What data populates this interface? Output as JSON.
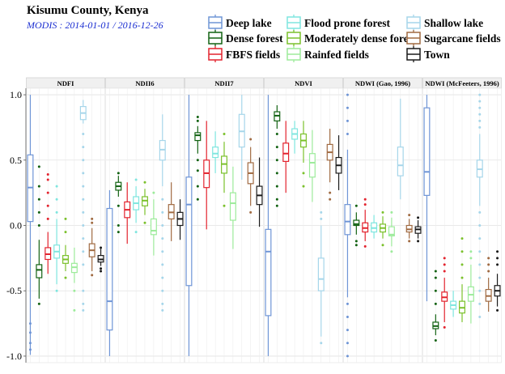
{
  "chart_data": {
    "type": "boxplot",
    "title": "Kisumu County, Kenya",
    "subtitle": "MODIS : 2014-01-01 / 2016-12-26",
    "ylim": [
      -1.05,
      1.05
    ],
    "y_ticks": [
      1.0,
      0.5,
      0.0,
      -0.5,
      -1.0
    ],
    "y_tick_labels": [
      "1.0",
      "0.5",
      "0.0",
      "-0.5",
      "-1.0"
    ],
    "grid": true,
    "legend_position": "top",
    "panels": [
      "NDFI",
      "NDII6",
      "NDII7",
      "NDVI",
      "NDWI (Gao, 1996)",
      "NDWI (McFeeters, 1996)"
    ],
    "series": [
      {
        "name": "Deep lake",
        "color": "#6f95d6",
        "stats": [
          {
            "whislo": -0.99,
            "q1": 0.03,
            "med": 0.29,
            "q3": 0.54,
            "whishi": 1.0,
            "outliers": [
              -0.75,
              -0.82,
              -0.9,
              -0.95
            ]
          },
          {
            "whislo": -1.0,
            "q1": -0.8,
            "med": -0.58,
            "q3": 0.13,
            "whishi": 0.27,
            "outliers": []
          },
          {
            "whislo": -1.0,
            "q1": -0.46,
            "med": 0.16,
            "q3": 0.37,
            "whishi": 1.0,
            "outliers": []
          },
          {
            "whislo": -1.0,
            "q1": -0.69,
            "med": -0.2,
            "q3": -0.03,
            "whishi": 1.0,
            "outliers": []
          },
          {
            "whislo": -0.55,
            "q1": -0.07,
            "med": 0.03,
            "q3": 0.16,
            "whishi": 0.58,
            "outliers": [
              1.0,
              0.9,
              0.8,
              0.7,
              -0.6,
              -0.7,
              -0.8,
              -0.9,
              -1.0
            ]
          },
          {
            "whislo": -0.58,
            "q1": 0.23,
            "med": 0.41,
            "q3": 0.9,
            "whishi": 1.0,
            "outliers": []
          }
        ]
      },
      {
        "name": "Dense forest",
        "color": "#126212",
        "stats": [
          {
            "whislo": -0.56,
            "q1": -0.4,
            "med": -0.34,
            "q3": -0.3,
            "whishi": -0.11,
            "outliers": [
              0.0,
              0.1,
              0.2,
              0.3,
              0.45,
              -0.6
            ]
          },
          {
            "whislo": 0.22,
            "q1": 0.27,
            "med": 0.3,
            "q3": 0.33,
            "whishi": 0.38,
            "outliers": [
              0.4,
              0.15,
              0.0,
              -0.05
            ]
          },
          {
            "whislo": 0.55,
            "q1": 0.65,
            "med": 0.69,
            "q3": 0.71,
            "whishi": 0.76,
            "outliers": [
              0.8,
              0.83,
              0.5,
              0.42,
              0.3,
              0.2
            ]
          },
          {
            "whislo": 0.74,
            "q1": 0.8,
            "med": 0.84,
            "q3": 0.87,
            "whishi": 0.92,
            "outliers": [
              0.7,
              0.6,
              0.5,
              0.4,
              0.3,
              0.2,
              0.15
            ]
          },
          {
            "whislo": -0.07,
            "q1": 0.0,
            "med": 0.01,
            "q3": 0.04,
            "whishi": 0.1,
            "outliers": [
              0.15,
              -0.12,
              -0.15
            ]
          },
          {
            "whislo": -0.84,
            "q1": -0.79,
            "med": -0.77,
            "q3": -0.74,
            "whishi": -0.68,
            "outliers": [
              -0.6,
              -0.5,
              -0.4,
              -0.35,
              -0.88
            ]
          }
        ]
      },
      {
        "name": "FBFS fields",
        "color": "#e3232e",
        "stats": [
          {
            "whislo": -0.37,
            "q1": -0.26,
            "med": -0.22,
            "q3": -0.17,
            "whishi": -0.05,
            "outliers": [
              0.05,
              0.15,
              0.25,
              0.35,
              0.39
            ]
          },
          {
            "whislo": -0.14,
            "q1": 0.06,
            "med": 0.12,
            "q3": 0.18,
            "whishi": 0.33,
            "outliers": []
          },
          {
            "whislo": -0.03,
            "q1": 0.29,
            "med": 0.4,
            "q3": 0.5,
            "whishi": 0.8,
            "outliers": []
          },
          {
            "whislo": 0.25,
            "q1": 0.49,
            "med": 0.55,
            "q3": 0.63,
            "whishi": 0.8,
            "outliers": []
          },
          {
            "whislo": -0.12,
            "q1": -0.05,
            "med": -0.02,
            "q3": 0.02,
            "whishi": 0.12,
            "outliers": [
              0.16,
              0.2,
              -0.16
            ]
          },
          {
            "whislo": -0.74,
            "q1": -0.58,
            "med": -0.55,
            "q3": -0.51,
            "whishi": -0.4,
            "outliers": [
              -0.35,
              -0.3,
              -0.25,
              -0.78
            ]
          }
        ]
      },
      {
        "name": "Flood prone forest",
        "color": "#7fe6df",
        "stats": [
          {
            "whislo": -0.45,
            "q1": -0.25,
            "med": -0.2,
            "q3": -0.15,
            "whishi": 0.05,
            "outliers": [
              0.1,
              0.2,
              0.3,
              -0.5
            ]
          },
          {
            "whislo": 0.02,
            "q1": 0.12,
            "med": 0.17,
            "q3": 0.22,
            "whishi": 0.3,
            "outliers": [
              0.35,
              -0.05
            ]
          },
          {
            "whislo": 0.4,
            "q1": 0.52,
            "med": 0.55,
            "q3": 0.6,
            "whishi": 0.72,
            "outliers": []
          },
          {
            "whislo": 0.55,
            "q1": 0.66,
            "med": 0.7,
            "q3": 0.74,
            "whishi": 0.8,
            "outliers": []
          },
          {
            "whislo": -0.1,
            "q1": -0.05,
            "med": -0.02,
            "q3": 0.02,
            "whishi": 0.08,
            "outliers": []
          },
          {
            "whislo": -0.7,
            "q1": -0.64,
            "med": -0.61,
            "q3": -0.58,
            "whishi": -0.5,
            "outliers": []
          }
        ]
      },
      {
        "name": "Moderately dense forest",
        "color": "#7bc12c",
        "stats": [
          {
            "whislo": -0.35,
            "q1": -0.29,
            "med": -0.26,
            "q3": -0.23,
            "whishi": -0.15,
            "outliers": [
              -0.05,
              0.05,
              -0.4
            ]
          },
          {
            "whislo": 0.08,
            "q1": 0.15,
            "med": 0.19,
            "q3": 0.22,
            "whishi": 0.28,
            "outliers": [
              0.33,
              0.02
            ]
          },
          {
            "whislo": 0.25,
            "q1": 0.4,
            "med": 0.47,
            "q3": 0.53,
            "whishi": 0.64,
            "outliers": [
              0.7,
              0.15
            ]
          },
          {
            "whislo": 0.48,
            "q1": 0.6,
            "med": 0.65,
            "q3": 0.7,
            "whishi": 0.8,
            "outliers": [
              0.4,
              0.3
            ]
          },
          {
            "whislo": -0.1,
            "q1": -0.05,
            "med": -0.02,
            "q3": 0.01,
            "whishi": 0.07,
            "outliers": [
              0.1,
              -0.15
            ]
          },
          {
            "whislo": -0.74,
            "q1": -0.67,
            "med": -0.63,
            "q3": -0.58,
            "whishi": -0.45,
            "outliers": [
              -0.4,
              -0.3,
              -0.2,
              -0.1
            ]
          }
        ]
      },
      {
        "name": "Rainfed fields",
        "color": "#9deb9b",
        "stats": [
          {
            "whislo": -0.44,
            "q1": -0.36,
            "med": -0.32,
            "q3": -0.29,
            "whishi": -0.17,
            "outliers": [
              -0.5,
              -0.65
            ]
          },
          {
            "whislo": -0.23,
            "q1": -0.07,
            "med": -0.04,
            "q3": 0.05,
            "whishi": 0.2,
            "outliers": [
              0.25
            ]
          },
          {
            "whislo": -0.18,
            "q1": 0.04,
            "med": 0.17,
            "q3": 0.25,
            "whishi": 0.45,
            "outliers": []
          },
          {
            "whislo": 0.18,
            "q1": 0.37,
            "med": 0.48,
            "q3": 0.55,
            "whishi": 0.73,
            "outliers": []
          },
          {
            "whislo": -0.16,
            "q1": -0.08,
            "med": -0.07,
            "q3": -0.01,
            "whishi": 0.06,
            "outliers": [
              0.1,
              -0.2
            ]
          },
          {
            "whislo": -0.75,
            "q1": -0.58,
            "med": -0.53,
            "q3": -0.47,
            "whishi": -0.3,
            "outliers": [
              -0.25,
              -0.2
            ]
          }
        ]
      },
      {
        "name": "Shallow lake",
        "color": "#a6d6ea",
        "stats": [
          {
            "whislo": 0.78,
            "q1": 0.81,
            "med": 0.86,
            "q3": 0.91,
            "whishi": 0.96,
            "outliers": [
              0.7,
              0.6,
              0.5,
              0.4,
              0.3,
              0.2,
              0.1,
              0.0,
              -0.1,
              -0.2,
              -0.3,
              -0.5,
              -0.6,
              -0.65
            ]
          },
          {
            "whislo": 0.3,
            "q1": 0.5,
            "med": 0.58,
            "q3": 0.65,
            "whishi": 0.85,
            "outliers": [
              0.2,
              0.1,
              0.0,
              -0.1,
              -0.2,
              -0.3,
              -0.4,
              -0.5,
              -0.6,
              -0.65
            ]
          },
          {
            "whislo": 0.35,
            "q1": 0.6,
            "med": 0.72,
            "q3": 0.85,
            "whishi": 1.0,
            "outliers": []
          },
          {
            "whislo": -0.85,
            "q1": -0.5,
            "med": -0.41,
            "q3": -0.25,
            "whishi": 0.0,
            "outliers": [
              -0.9,
              0.05,
              0.1
            ]
          },
          {
            "whislo": 0.2,
            "q1": 0.38,
            "med": 0.46,
            "q3": 0.6,
            "whishi": 0.97,
            "outliers": []
          },
          {
            "whislo": 0.15,
            "q1": 0.37,
            "med": 0.43,
            "q3": 0.5,
            "whishi": 0.7,
            "outliers": [
              0.75,
              0.8,
              0.85,
              0.9,
              0.95,
              1.0,
              0.1,
              0.0,
              -0.1,
              -0.2,
              -0.3,
              -0.4,
              -0.5,
              -0.6,
              -0.7
            ]
          }
        ]
      },
      {
        "name": "Sugarcane fields",
        "color": "#a06a41",
        "stats": [
          {
            "whislo": -0.35,
            "q1": -0.24,
            "med": -0.19,
            "q3": -0.14,
            "whishi": -0.02,
            "outliers": [
              0.02,
              0.05,
              -0.38
            ]
          },
          {
            "whislo": -0.12,
            "q1": 0.05,
            "med": 0.1,
            "q3": 0.16,
            "whishi": 0.33,
            "outliers": []
          },
          {
            "whislo": 0.15,
            "q1": 0.32,
            "med": 0.4,
            "q3": 0.48,
            "whishi": 0.6,
            "outliers": [
              0.66,
              0.1
            ]
          },
          {
            "whislo": 0.33,
            "q1": 0.5,
            "med": 0.56,
            "q3": 0.62,
            "whishi": 0.74,
            "outliers": [
              0.25,
              0.2
            ]
          },
          {
            "whislo": -0.1,
            "q1": -0.05,
            "med": -0.03,
            "q3": 0.0,
            "whishi": 0.05,
            "outliers": [
              0.08,
              -0.12
            ]
          },
          {
            "whislo": -0.66,
            "q1": -0.58,
            "med": -0.54,
            "q3": -0.49,
            "whishi": -0.4,
            "outliers": [
              -0.35,
              -0.3,
              -0.25
            ]
          }
        ]
      },
      {
        "name": "Town",
        "color": "#1a1a1a",
        "stats": [
          {
            "whislo": -0.31,
            "q1": -0.28,
            "med": -0.26,
            "q3": -0.23,
            "whishi": -0.18,
            "outliers": [
              -0.17,
              -0.33,
              -0.35
            ]
          },
          {
            "whislo": -0.11,
            "q1": 0.0,
            "med": 0.05,
            "q3": 0.1,
            "whishi": 0.2,
            "outliers": []
          },
          {
            "whislo": -0.01,
            "q1": 0.16,
            "med": 0.23,
            "q3": 0.3,
            "whishi": 0.52,
            "outliers": []
          },
          {
            "whislo": 0.27,
            "q1": 0.4,
            "med": 0.46,
            "q3": 0.52,
            "whishi": 0.69,
            "outliers": []
          },
          {
            "whislo": -0.1,
            "q1": -0.06,
            "med": -0.03,
            "q3": -0.01,
            "whishi": 0.04,
            "outliers": [
              0.06,
              -0.12
            ]
          },
          {
            "whislo": -0.62,
            "q1": -0.54,
            "med": -0.5,
            "q3": -0.46,
            "whishi": -0.37,
            "outliers": [
              -0.3,
              -0.25,
              -0.2,
              -0.65
            ]
          }
        ]
      }
    ]
  }
}
